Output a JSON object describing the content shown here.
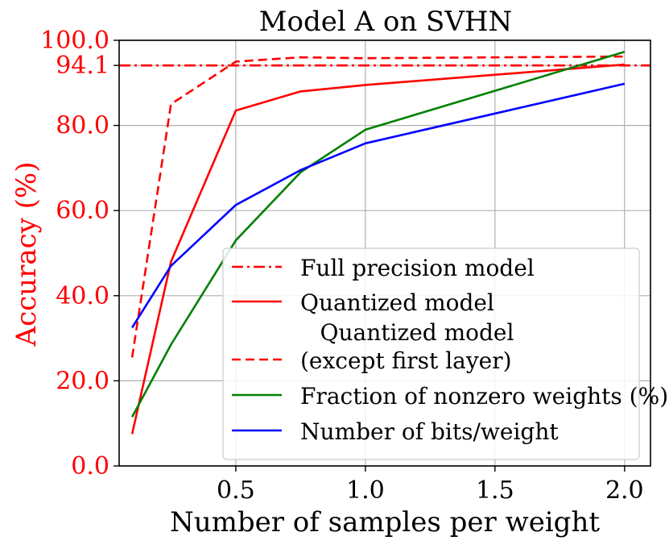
{
  "chart_data": {
    "type": "line",
    "title": "Model A on SVHN",
    "xlabel": "Number of samples per weight",
    "ylabel": "Accuracy (%)",
    "xlim": [
      0.05,
      2.1
    ],
    "ylim": [
      0,
      100
    ],
    "xticks": [
      0.5,
      1.0,
      1.5,
      2.0
    ],
    "xtick_labels": [
      "0.5",
      "1.0",
      "1.5",
      "2.0"
    ],
    "yticks": [
      0,
      20,
      40,
      60,
      80,
      94.1,
      100
    ],
    "ytick_labels": [
      "0.0",
      "20.0",
      "40.0",
      "60.0",
      "80.0",
      "94.1",
      "100.0"
    ],
    "grid": true,
    "legend_position": "lower-right",
    "series": [
      {
        "name": "Full precision model",
        "color": "#ff0000",
        "dash": "dashdot",
        "x": [
          0.05,
          2.1
        ],
        "y": [
          94.1,
          94.1
        ]
      },
      {
        "name": "Quantized model",
        "color": "#ff0000",
        "dash": "solid",
        "x": [
          0.1,
          0.25,
          0.5,
          0.75,
          1.0,
          2.0
        ],
        "y": [
          7.5,
          48,
          83.5,
          88,
          89.5,
          94.3
        ]
      },
      {
        "name": "Quantized model (except first layer)",
        "legend_lines": [
          "Quantized model",
          "(except first layer)"
        ],
        "color": "#ff0000",
        "dash": "dashed",
        "x": [
          0.1,
          0.25,
          0.5,
          0.75,
          1.0,
          2.0
        ],
        "y": [
          25.5,
          85,
          95,
          96,
          95.8,
          96.2
        ]
      },
      {
        "name": "Fraction of nonzero weights (%)",
        "color": "#008000",
        "dash": "solid",
        "x": [
          0.1,
          0.25,
          0.5,
          0.75,
          1.0,
          2.0
        ],
        "y": [
          11.5,
          28.5,
          53,
          69,
          79,
          97.3
        ]
      },
      {
        "name": "Number of bits/weight",
        "color": "#0000ff",
        "dash": "solid",
        "x": [
          0.1,
          0.25,
          0.5,
          0.75,
          1.0,
          2.0
        ],
        "y": [
          32.5,
          47,
          61.3,
          69.5,
          75.8,
          89.8
        ]
      }
    ]
  }
}
